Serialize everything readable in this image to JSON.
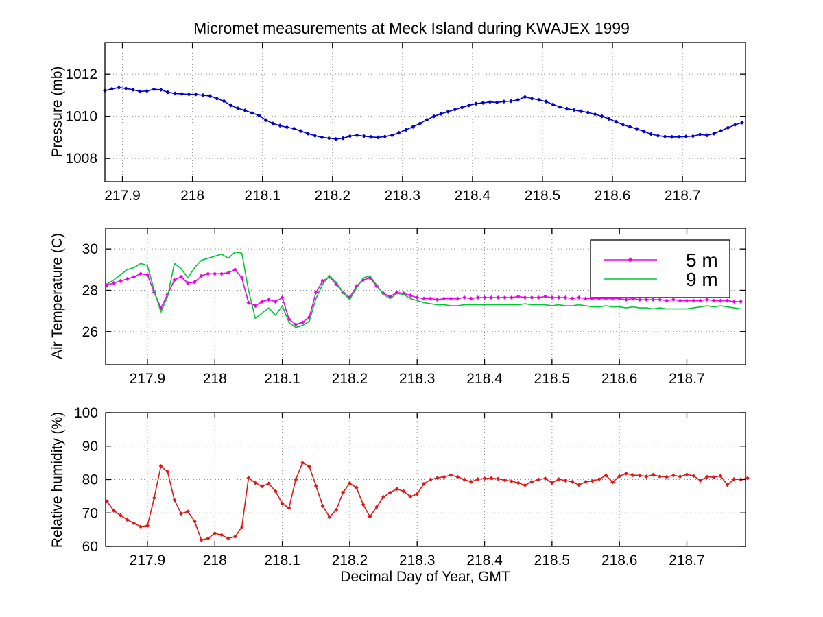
{
  "title": "Micromet measurements at Meck Island during KWAJEX 1999",
  "xlabel": "Decimal Day of Year, GMT",
  "colors": {
    "pressure_line": "#0000CC",
    "temp_5m_line": "#EE00EE",
    "temp_9m_line": "#00C832",
    "humidity_line": "#E01818",
    "grid": "#909090",
    "axis": "#000000",
    "legend_bg": "#FFFFFF"
  },
  "chart_data": [
    {
      "type": "line",
      "name": "pressure",
      "ylabel": "Pressure (mb)",
      "xlim": [
        217.875,
        218.79
      ],
      "ylim": [
        1006.9,
        1013.5
      ],
      "xticks": [
        217.9,
        218.0,
        218.1,
        218.2,
        218.3,
        218.4,
        218.5,
        218.6,
        218.7
      ],
      "xtick_labels": [
        "217.9",
        "218",
        "218.1",
        "218.2",
        "218.3",
        "218.4",
        "218.5",
        "218.6",
        "218.7"
      ],
      "yticks": [
        1008,
        1010,
        1012
      ],
      "ytick_labels": [
        "1008",
        "1010",
        "1012"
      ],
      "grid": true,
      "series": [
        {
          "name": "Pressure",
          "color_key": "pressure_line",
          "marker": "diamond",
          "x0": 217.875,
          "dx": 0.01,
          "values": [
            1011.22,
            1011.3,
            1011.36,
            1011.32,
            1011.26,
            1011.18,
            1011.2,
            1011.28,
            1011.26,
            1011.14,
            1011.08,
            1011.06,
            1011.04,
            1011.04,
            1011.0,
            1010.96,
            1010.84,
            1010.72,
            1010.52,
            1010.38,
            1010.28,
            1010.16,
            1010.04,
            1009.82,
            1009.66,
            1009.56,
            1009.48,
            1009.42,
            1009.3,
            1009.18,
            1009.08,
            1009.0,
            1008.96,
            1008.92,
            1008.96,
            1009.06,
            1009.1,
            1009.06,
            1009.02,
            1009.0,
            1009.04,
            1009.1,
            1009.22,
            1009.36,
            1009.5,
            1009.66,
            1009.84,
            1010.0,
            1010.12,
            1010.22,
            1010.32,
            1010.42,
            1010.52,
            1010.6,
            1010.64,
            1010.68,
            1010.66,
            1010.7,
            1010.72,
            1010.78,
            1010.92,
            1010.84,
            1010.78,
            1010.7,
            1010.56,
            1010.44,
            1010.36,
            1010.3,
            1010.24,
            1010.18,
            1010.1,
            1010.0,
            1009.88,
            1009.74,
            1009.6,
            1009.5,
            1009.4,
            1009.28,
            1009.16,
            1009.08,
            1009.04,
            1009.02,
            1009.02,
            1009.04,
            1009.06,
            1009.14,
            1009.1,
            1009.18,
            1009.32,
            1009.46,
            1009.6,
            1009.7
          ]
        }
      ]
    },
    {
      "type": "line",
      "name": "air-temperature",
      "ylabel": "Air Temperature (C)",
      "xlim": [
        217.838,
        218.787
      ],
      "ylim": [
        24.4,
        31.0
      ],
      "xticks": [
        217.9,
        218.0,
        218.1,
        218.2,
        218.3,
        218.4,
        218.5,
        218.6,
        218.7
      ],
      "xtick_labels": [
        "217.9",
        "218",
        "218.1",
        "218.2",
        "218.3",
        "218.4",
        "218.5",
        "218.6",
        "218.7"
      ],
      "yticks": [
        26,
        28,
        30
      ],
      "ytick_labels": [
        "26",
        "28",
        "30"
      ],
      "grid": true,
      "legend": {
        "entries": [
          {
            "label": "5 m",
            "color_key": "temp_5m_line",
            "marker": "diamond"
          },
          {
            "label": "9 m",
            "color_key": "temp_9m_line",
            "marker": "none"
          }
        ]
      },
      "series": [
        {
          "name": "5 m",
          "color_key": "temp_5m_line",
          "marker": "diamond",
          "x0": 217.84,
          "dx": 0.01,
          "values": [
            28.25,
            28.35,
            28.45,
            28.55,
            28.65,
            28.8,
            28.75,
            27.9,
            27.15,
            27.8,
            28.5,
            28.65,
            28.35,
            28.4,
            28.7,
            28.8,
            28.8,
            28.8,
            28.85,
            29.0,
            28.6,
            27.4,
            27.25,
            27.45,
            27.55,
            27.45,
            27.65,
            26.6,
            26.35,
            26.45,
            26.7,
            27.9,
            28.45,
            28.65,
            28.3,
            27.9,
            27.65,
            28.2,
            28.5,
            28.6,
            28.2,
            27.85,
            27.7,
            27.9,
            27.85,
            27.75,
            27.65,
            27.6,
            27.6,
            27.55,
            27.6,
            27.6,
            27.6,
            27.65,
            27.6,
            27.65,
            27.65,
            27.65,
            27.65,
            27.65,
            27.65,
            27.7,
            27.65,
            27.65,
            27.65,
            27.7,
            27.65,
            27.65,
            27.65,
            27.6,
            27.65,
            27.6,
            27.6,
            27.6,
            27.6,
            27.6,
            27.6,
            27.55,
            27.6,
            27.55,
            27.55,
            27.55,
            27.55,
            27.5,
            27.55,
            27.5,
            27.5,
            27.5,
            27.5,
            27.55,
            27.5,
            27.5,
            27.5,
            27.45,
            27.45
          ]
        },
        {
          "name": "9 m",
          "color_key": "temp_9m_line",
          "marker": "none",
          "x0": 217.84,
          "dx": 0.01,
          "values": [
            28.3,
            28.5,
            28.75,
            29.0,
            29.1,
            29.3,
            29.2,
            28.0,
            26.95,
            27.7,
            29.3,
            29.05,
            28.6,
            29.1,
            29.45,
            29.55,
            29.65,
            29.75,
            29.55,
            29.85,
            29.8,
            28.0,
            26.65,
            26.9,
            27.15,
            26.8,
            27.25,
            26.45,
            26.2,
            26.3,
            26.5,
            27.6,
            28.3,
            28.7,
            28.4,
            27.9,
            27.55,
            28.1,
            28.6,
            28.7,
            28.25,
            27.8,
            27.6,
            27.85,
            27.8,
            27.6,
            27.5,
            27.4,
            27.35,
            27.3,
            27.3,
            27.25,
            27.25,
            27.3,
            27.3,
            27.3,
            27.3,
            27.3,
            27.3,
            27.3,
            27.3,
            27.3,
            27.35,
            27.3,
            27.3,
            27.3,
            27.25,
            27.3,
            27.25,
            27.25,
            27.3,
            27.25,
            27.2,
            27.2,
            27.25,
            27.2,
            27.2,
            27.15,
            27.2,
            27.15,
            27.15,
            27.1,
            27.15,
            27.1,
            27.1,
            27.1,
            27.1,
            27.15,
            27.2,
            27.25,
            27.2,
            27.25,
            27.2,
            27.15,
            27.1
          ]
        }
      ]
    },
    {
      "type": "line",
      "name": "relative-humidity",
      "ylabel": "Relative humidity (%)",
      "xlim": [
        217.838,
        218.787
      ],
      "ylim": [
        60,
        100
      ],
      "xticks": [
        217.9,
        218.0,
        218.1,
        218.2,
        218.3,
        218.4,
        218.5,
        218.6,
        218.7
      ],
      "xtick_labels": [
        "217.9",
        "218",
        "218.1",
        "218.2",
        "218.3",
        "218.4",
        "218.5",
        "218.6",
        "218.7"
      ],
      "yticks": [
        60,
        70,
        80,
        90,
        100
      ],
      "ytick_labels": [
        "60",
        "70",
        "80",
        "90",
        "100"
      ],
      "grid": true,
      "series": [
        {
          "name": "Relative humidity",
          "color_key": "humidity_line",
          "marker": "diamond",
          "x0": 217.84,
          "dx": 0.01,
          "values": [
            73.5,
            70.7,
            69.3,
            68.0,
            66.9,
            65.9,
            66.2,
            74.5,
            84.0,
            82.3,
            73.9,
            69.8,
            70.4,
            67.5,
            61.9,
            62.4,
            63.9,
            63.4,
            62.4,
            62.9,
            65.8,
            80.5,
            79.0,
            78.0,
            78.8,
            76.5,
            72.8,
            71.5,
            80.0,
            85.0,
            83.9,
            78.1,
            72.1,
            68.8,
            70.9,
            76.1,
            78.9,
            77.6,
            72.5,
            68.9,
            71.8,
            74.8,
            76.1,
            77.2,
            76.5,
            74.9,
            75.7,
            78.7,
            80.0,
            80.5,
            80.8,
            81.3,
            80.8,
            80.0,
            79.3,
            80.1,
            80.3,
            80.4,
            80.2,
            79.8,
            79.5,
            79.0,
            78.3,
            79.3,
            80.0,
            80.3,
            79.0,
            80.1,
            79.7,
            79.3,
            78.4,
            79.3,
            79.6,
            80.1,
            81.2,
            79.2,
            81.0,
            81.8,
            81.3,
            81.2,
            80.9,
            81.4,
            80.9,
            80.8,
            81.2,
            80.9,
            81.5,
            81.1,
            79.7,
            80.8,
            80.7,
            81.1,
            78.4,
            80.1,
            80.0,
            80.4
          ]
        }
      ]
    }
  ]
}
